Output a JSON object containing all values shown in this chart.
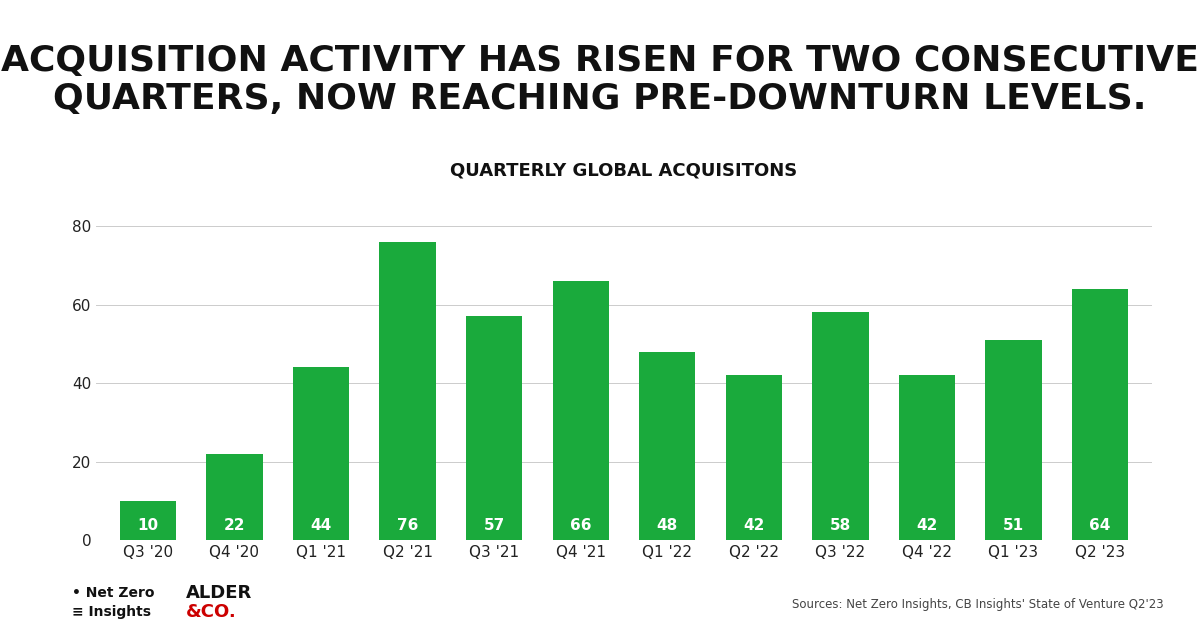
{
  "title_line1": "ACQUISITION ACTIVITY HAS RISEN FOR TWO CONSECUTIVE",
  "title_line2": "QUARTERS, NOW REACHING PRE-DOWNTURN LEVELS.",
  "subtitle": "QUARTERLY GLOBAL ACQUISITONS",
  "categories": [
    "Q3 '20",
    "Q4 '20",
    "Q1 '21",
    "Q2 '21",
    "Q3 '21",
    "Q4 '21",
    "Q1 '22",
    "Q2 '22",
    "Q3 '22",
    "Q4 '22",
    "Q1 '23",
    "Q2 '23"
  ],
  "values": [
    10,
    22,
    44,
    76,
    57,
    66,
    48,
    42,
    58,
    42,
    51,
    64
  ],
  "bar_color": "#1aaa3c",
  "bar_edge_color": "none",
  "label_color": "#ffffff",
  "ylim": [
    0,
    88
  ],
  "yticks": [
    0,
    20,
    40,
    60,
    80
  ],
  "background_color": "#ffffff",
  "title_fontsize": 26,
  "subtitle_fontsize": 13,
  "label_fontsize": 11,
  "tick_fontsize": 11,
  "source_text": "Sources: Net Zero Insights, CB Insights' State of Venture Q2'23",
  "nzi_text1": "• Net Zero",
  "nzi_text2": "≡ Insights",
  "alder_text1": "ALDER",
  "alder_text2": "&CO.",
  "alder_color": "#cc0000"
}
